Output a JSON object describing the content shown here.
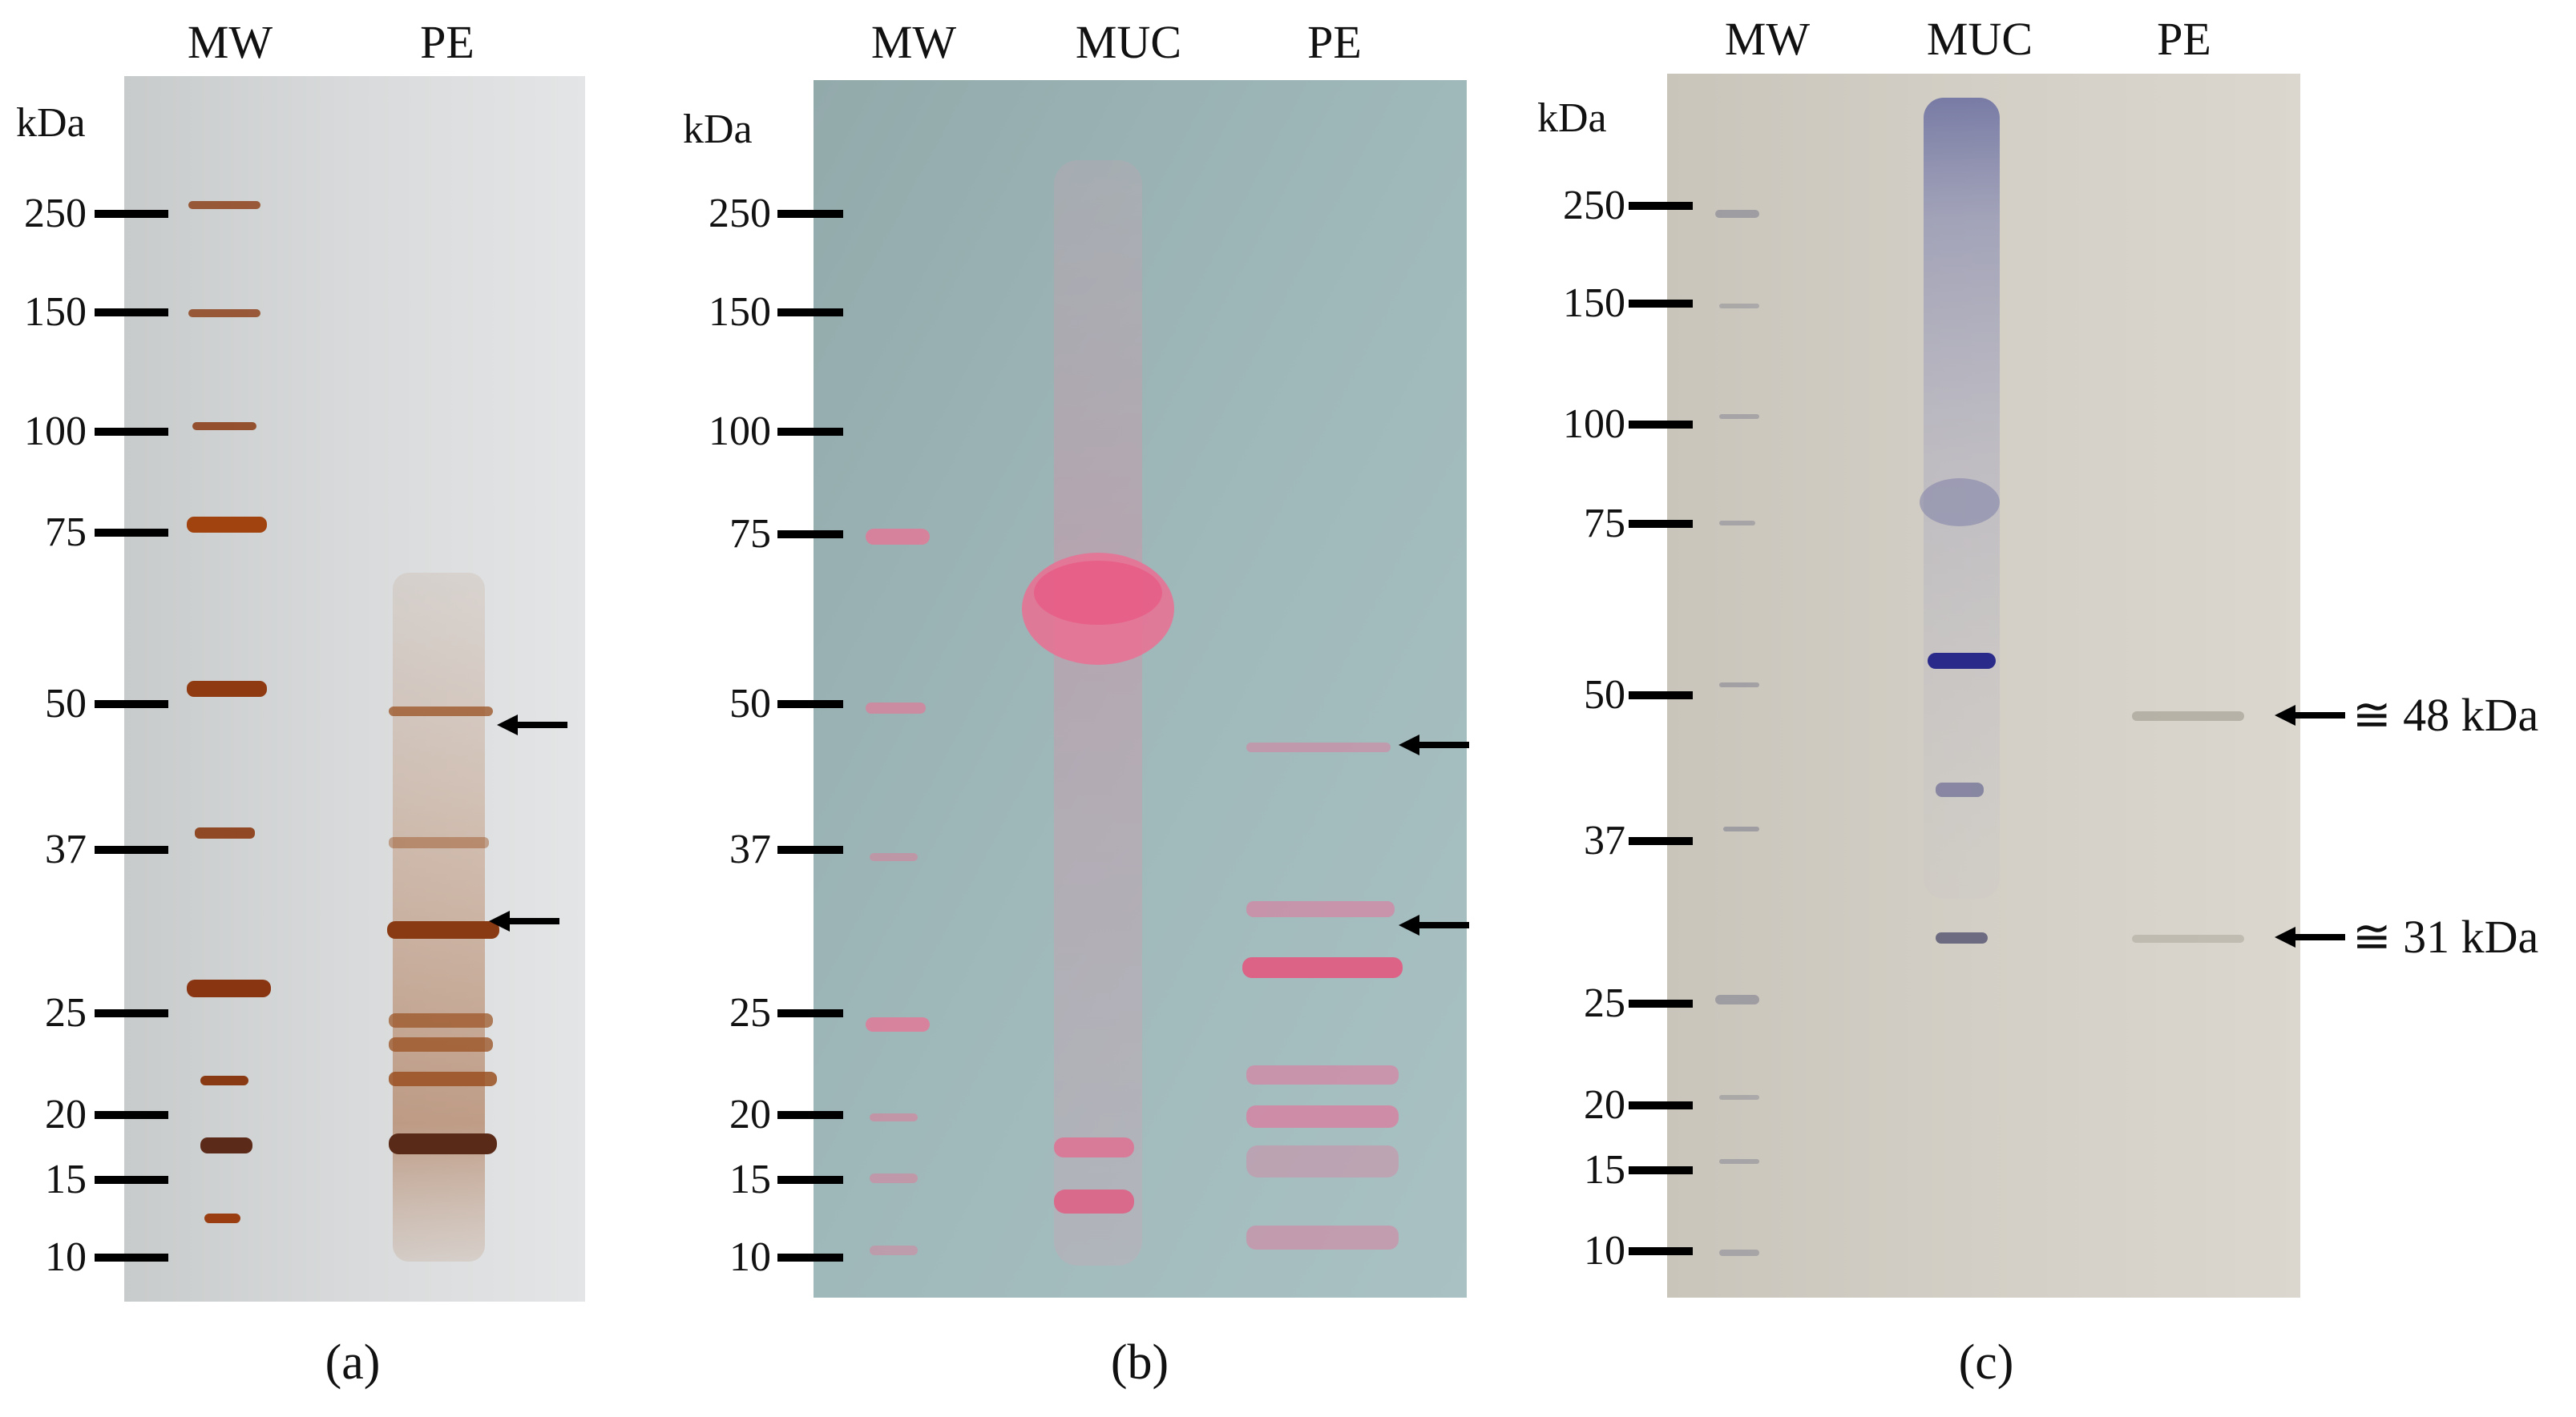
{
  "panels": [
    {
      "caption": "(a)",
      "lanes": [
        "MW",
        "PE"
      ],
      "unit": "kDa",
      "markers": [
        "250",
        "150",
        "100",
        "75",
        "50",
        "37",
        "25",
        "20",
        "15",
        "10"
      ],
      "stain": "silver"
    },
    {
      "caption": "(b)",
      "lanes": [
        "MW",
        "MUC",
        "PE"
      ],
      "unit": "kDa",
      "markers": [
        "250",
        "150",
        "100",
        "75",
        "50",
        "37",
        "25",
        "20",
        "15",
        "10"
      ],
      "stain": "ponceau"
    },
    {
      "caption": "(c)",
      "lanes": [
        "MW",
        "MUC",
        "PE"
      ],
      "unit": "kDa",
      "markers": [
        "250",
        "150",
        "100",
        "75",
        "50",
        "37",
        "25",
        "20",
        "15",
        "10"
      ],
      "stain": "blot",
      "annotations": [
        "≅ 48 kDa",
        "≅ 31 kDa"
      ]
    }
  ],
  "colors": {
    "silver_background": "#cfd2d2",
    "silver_band": "#8a3a12",
    "ponceau_background": "#9bb3b4",
    "ponceau_band": "#e07a98",
    "blot_background": "#cfcbc2",
    "blot_band": "#3a3a8a"
  }
}
